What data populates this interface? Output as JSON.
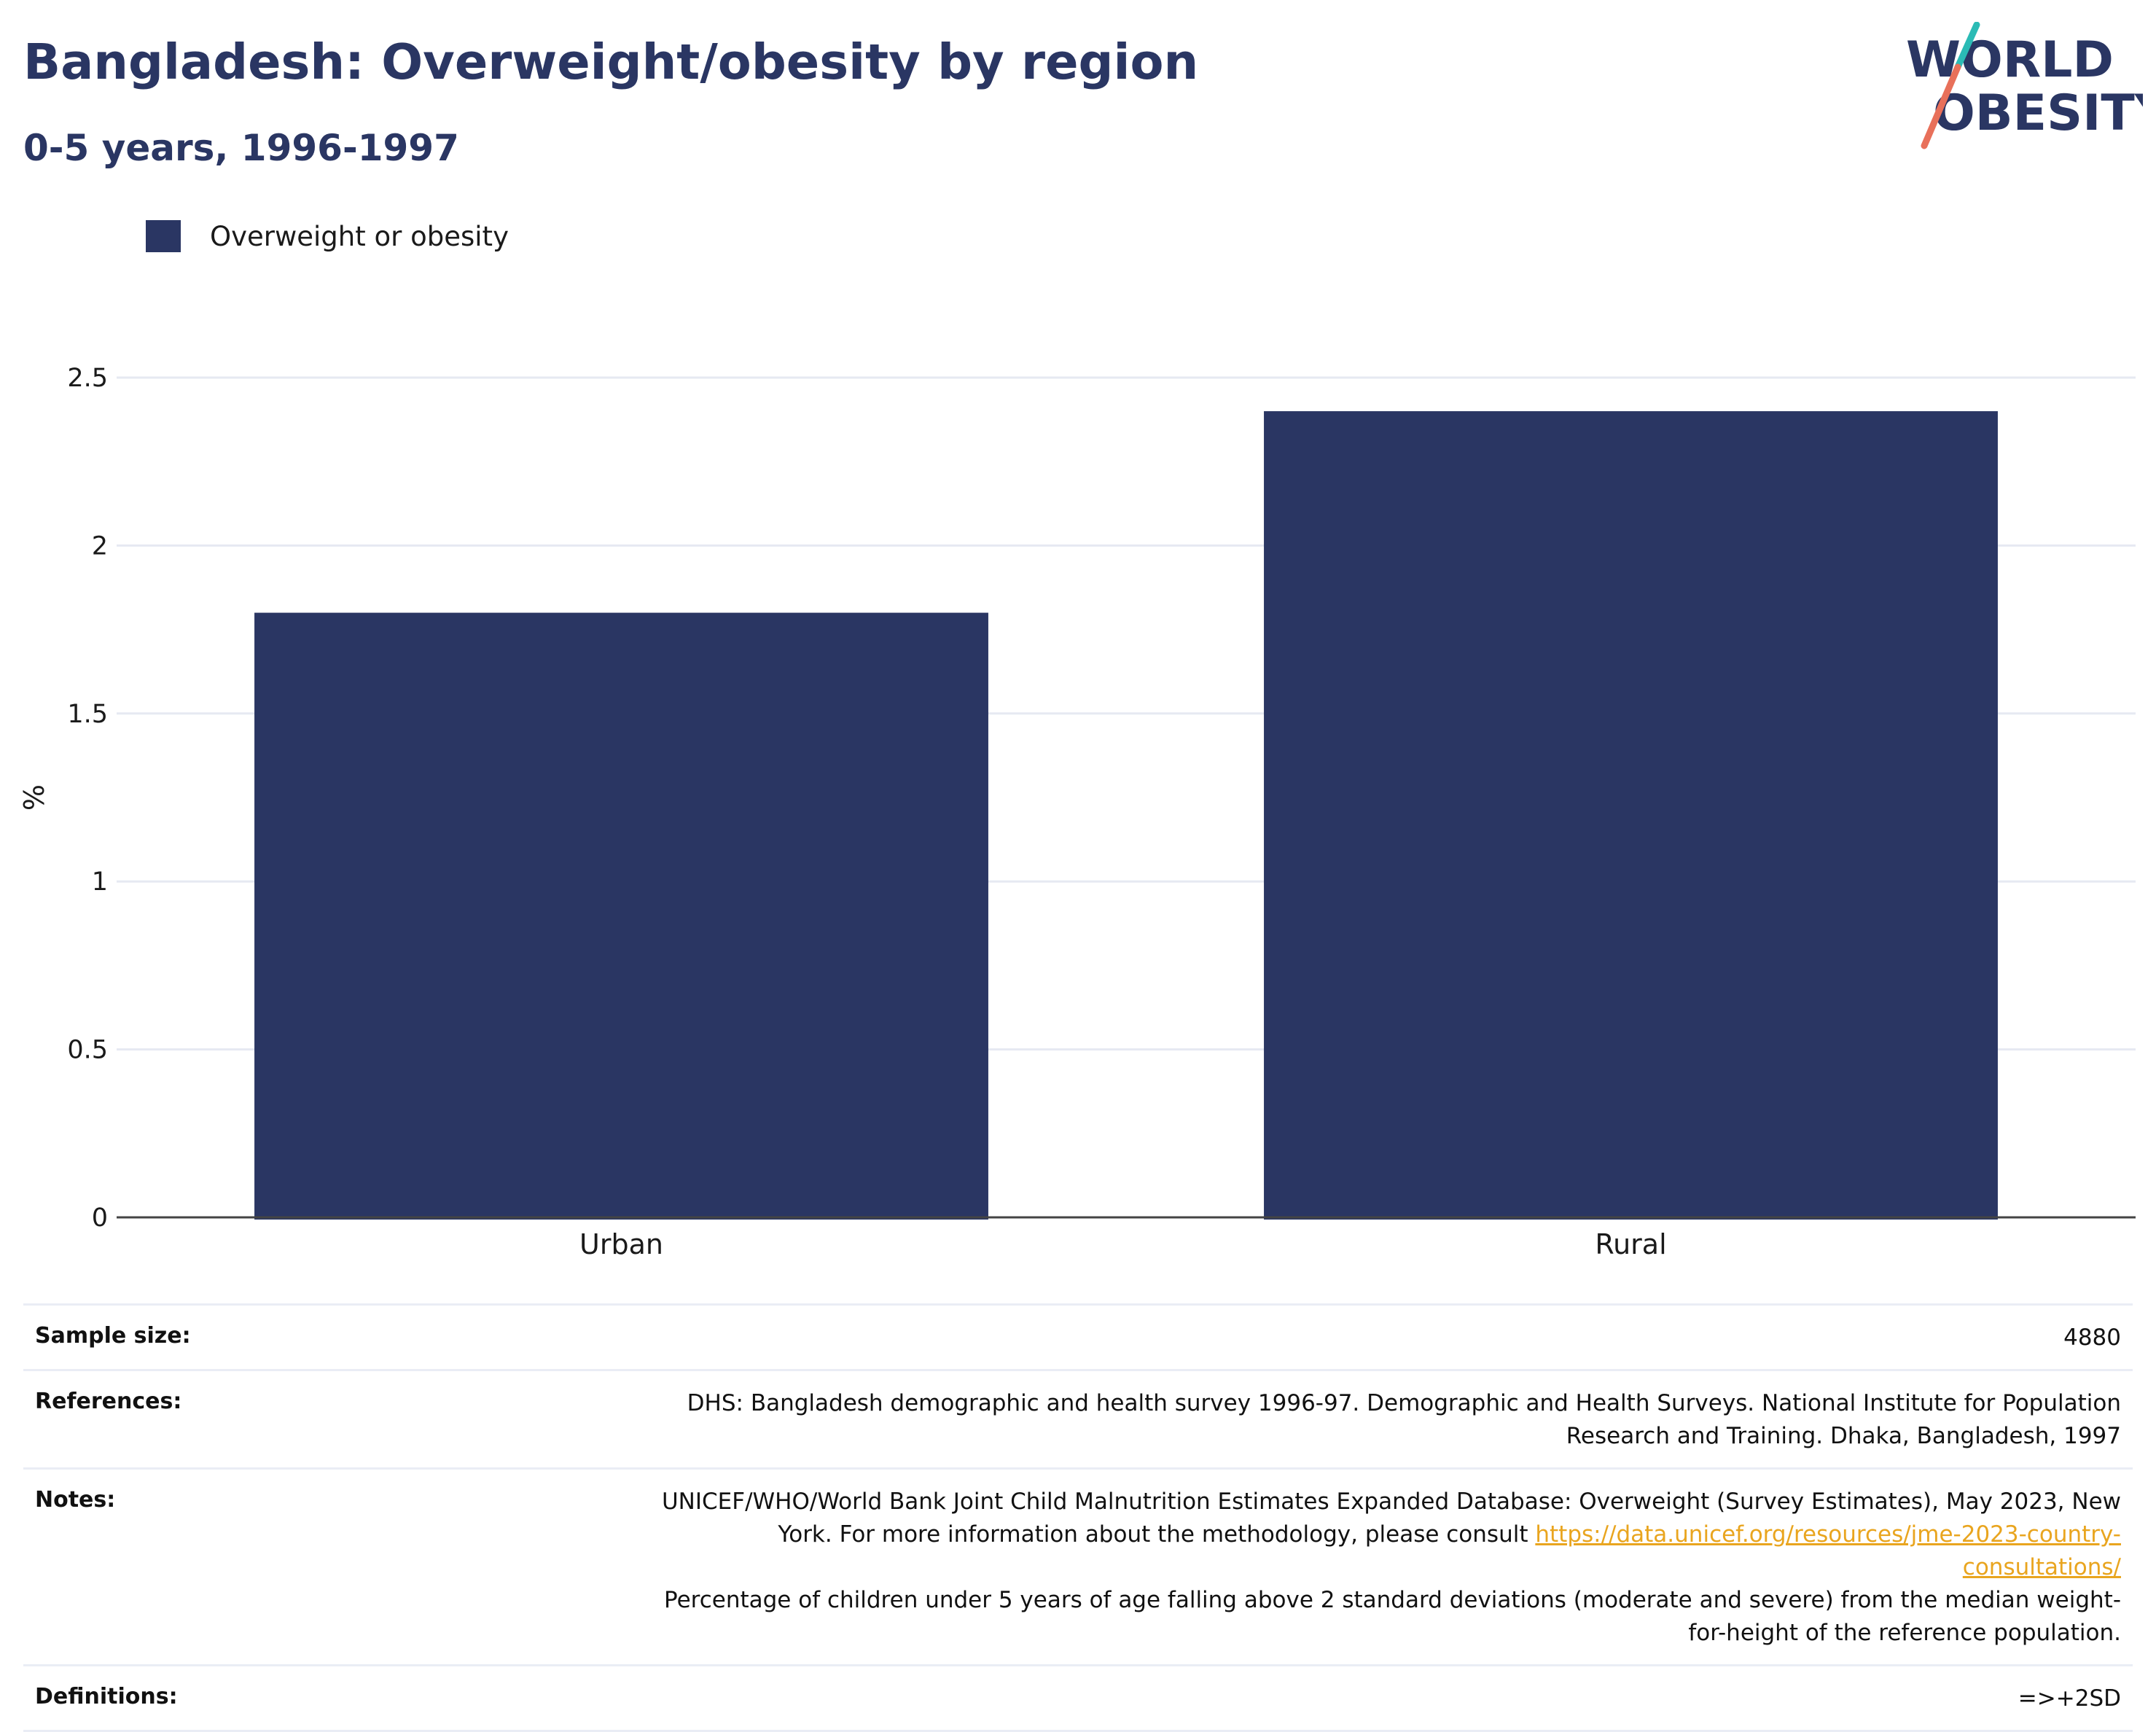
{
  "header": {
    "title": "Bangladesh: Overweight/obesity by region",
    "subtitle": "0-5 years, 1996-1997"
  },
  "logo": {
    "line1": "WORLD",
    "line2": "OBESITY",
    "text_color": "#2a3663",
    "slash_top_color": "#2bbbb5",
    "slash_bottom_color": "#e8705a"
  },
  "legend": {
    "label": "Overweight or obesity",
    "color": "#2a3663"
  },
  "chart_data": {
    "type": "bar",
    "categories": [
      "Urban",
      "Rural"
    ],
    "series": [
      {
        "name": "Overweight or obesity",
        "values": [
          1.8,
          2.4
        ],
        "color": "#2a3663"
      }
    ],
    "ylabel": "%",
    "xlabel": "",
    "ylim": [
      0,
      2.5
    ],
    "yticks": [
      0,
      0.5,
      1,
      1.5,
      2,
      2.5
    ],
    "ytick_labels": [
      "0",
      "0.5",
      "1",
      "1.5",
      "2",
      "2.5"
    ],
    "grid": true,
    "legend_position": "top-left"
  },
  "info": {
    "sample_size_label": "Sample size:",
    "sample_size_value": "4880",
    "references_label": "References:",
    "references_value": "DHS: Bangladesh demographic and health survey 1996-97. Demographic and Health Surveys. National Institute for Population Research and Training. Dhaka, Bangladesh, 1997",
    "notes_label": "Notes:",
    "notes_text_before": "UNICEF/WHO/World Bank Joint Child Malnutrition Estimates Expanded Database: Overweight (Survey Estimates), May 2023, New York. For more information about the methodology, please consult ",
    "notes_link": "https://data.unicef.org/resources/jme-2023-country-consultations/",
    "notes_text_after": "Percentage of children under 5 years of age falling above 2 standard deviations (moderate and severe) from the median weight-for-height of the reference population.",
    "definitions_label": "Definitions:",
    "definitions_value": "=>+2SD"
  }
}
